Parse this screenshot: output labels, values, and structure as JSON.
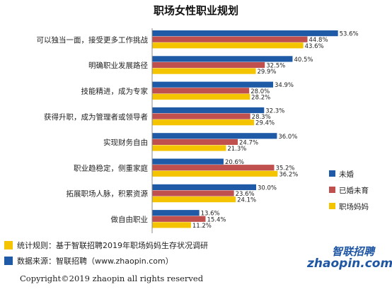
{
  "chart_data": {
    "type": "bar",
    "orientation": "horizontal",
    "title": "职场女性职业规划",
    "categories": [
      "可以独当一面，接受更多工作挑战",
      "明确职业发展路径",
      "技能精进，成为专家",
      "获得升职，成为管理者或领导者",
      "实现财务自由",
      "职业趋稳定，侧重家庭",
      "拓展职场人脉，积累资源",
      "做自由职业"
    ],
    "series": [
      {
        "name": "未婚",
        "color": "#1f5aa6",
        "values": [
          53.6,
          40.5,
          34.9,
          32.3,
          36.0,
          20.6,
          30.0,
          13.6
        ],
        "labels": [
          "53.6%",
          "40.5%",
          "34.9%",
          "32.3%",
          "36.0%",
          "20.6%",
          "30.0%",
          "13.6%"
        ]
      },
      {
        "name": "已婚未育",
        "color": "#c0504d",
        "values": [
          44.8,
          32.5,
          28.0,
          28.3,
          24.7,
          35.2,
          23.6,
          15.4
        ],
        "labels": [
          "44.8%",
          "32.5%",
          "28.0%",
          "28.3%",
          "24.7%",
          "35.2%",
          "23.6%",
          "15.4%"
        ]
      },
      {
        "name": "职场妈妈",
        "color": "#f5c400",
        "values": [
          43.6,
          29.9,
          28.2,
          29.4,
          21.3,
          36.2,
          24.1,
          11.2
        ],
        "labels": [
          "43.6%",
          "29.9%",
          "28.2%",
          "29.4%",
          "21.3%",
          "36.2%",
          "24.1%",
          "11.2%"
        ]
      }
    ],
    "xlim": [
      0,
      60
    ],
    "legend_position": "right",
    "grid": false
  },
  "notes": [
    {
      "text": "统计规则：基于智联招聘2019年职场妈妈生存状况调研",
      "color": "#f5c400"
    },
    {
      "text": "数据来源：智联招聘（www.zhaopin.com）",
      "color": "#1f5aa6"
    }
  ],
  "copyright": "Copyright©2019 zhaopin all rights reserved",
  "logo": {
    "name": "zhaopin-logo",
    "text_cn": "智联招聘",
    "text_en": "zhaopin.com"
  }
}
